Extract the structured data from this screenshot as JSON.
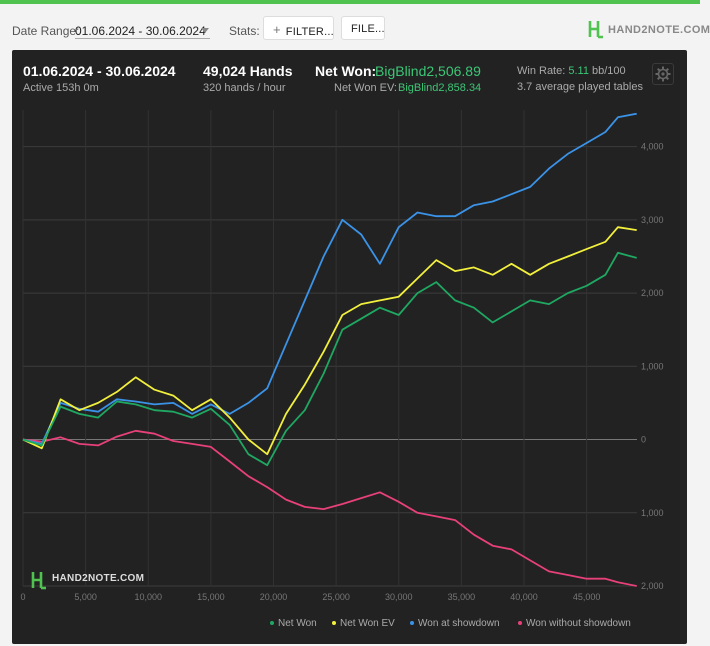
{
  "toolbar": {
    "date_range_label": "Date Range:",
    "date_range_value": "01.06.2024 - 30.06.2024",
    "stats_label": "Stats:",
    "filter_button": "FILTER...",
    "file_button": "FILE...",
    "logo_text": "HAND2NOTE.COM"
  },
  "summary": {
    "period": "01.06.2024 - 30.06.2024",
    "active": "Active 153h 0m",
    "hands": "49,024 Hands",
    "hands_rate": "320 hands / hour",
    "net_won_label": "Net Won:",
    "net_won_value": "BigBlind2,506.89",
    "net_won_ev_label": "Net Won  EV:",
    "net_won_ev_value": "BigBlind2,858.34",
    "win_rate_label": "Win Rate:",
    "win_rate_value": "5.11",
    "win_rate_unit": "bb/100",
    "avg_tables": "3.7 average played tables"
  },
  "watermark": "HAND2NOTE.COM",
  "colors": {
    "net_won": "#1fa862",
    "net_won_ev": "#f2f03c",
    "won_at_showdown": "#3b93e8",
    "won_without_showdown": "#e8407a",
    "accent_green": "#3cc676"
  },
  "chart_data": {
    "type": "line",
    "xlabel": "",
    "ylabel": "",
    "xlim": [
      0,
      49024
    ],
    "ylim": [
      -2000,
      4500
    ],
    "x_ticks": [
      0,
      5000,
      10000,
      15000,
      20000,
      25000,
      30000,
      35000,
      40000,
      45000
    ],
    "x_tick_labels": [
      "0",
      "5,000",
      "10,000",
      "15,000",
      "20,000",
      "25,000",
      "30,000",
      "35,000",
      "40,000",
      "45,000"
    ],
    "y_ticks": [
      4000,
      3000,
      2000,
      1000,
      0,
      -1000,
      -2000
    ],
    "y_tick_labels": [
      "4,000",
      "3,000",
      "2,000",
      "1,000",
      "0",
      "1,000",
      "2,000"
    ],
    "legend_position": "bottom-right",
    "series": [
      {
        "name": "Net Won",
        "x": [
          0,
          1500,
          3000,
          4500,
          6000,
          7500,
          9000,
          10500,
          12000,
          13500,
          15000,
          16500,
          18000,
          19500,
          21000,
          22500,
          24000,
          25500,
          27000,
          28500,
          30000,
          31500,
          33000,
          34500,
          36000,
          37500,
          39000,
          40500,
          42000,
          43500,
          45000,
          46500,
          47500,
          49000
        ],
        "y": [
          0,
          -80,
          450,
          350,
          300,
          520,
          480,
          400,
          380,
          300,
          420,
          200,
          -200,
          -350,
          120,
          400,
          900,
          1500,
          1650,
          1800,
          1700,
          2000,
          2150,
          1900,
          1800,
          1600,
          1750,
          1900,
          1850,
          2000,
          2100,
          2250,
          2550,
          2480
        ]
      },
      {
        "name": "Net Won  EV",
        "x": [
          0,
          1500,
          3000,
          4500,
          6000,
          7500,
          9000,
          10500,
          12000,
          13500,
          15000,
          16500,
          18000,
          19500,
          21000,
          22500,
          24000,
          25500,
          27000,
          28500,
          30000,
          31500,
          33000,
          34500,
          36000,
          37500,
          39000,
          40500,
          42000,
          43500,
          45000,
          46500,
          47500,
          49000
        ],
        "y": [
          0,
          -120,
          550,
          400,
          500,
          650,
          850,
          680,
          600,
          400,
          550,
          300,
          0,
          -200,
          350,
          750,
          1200,
          1700,
          1850,
          1900,
          1950,
          2200,
          2450,
          2300,
          2350,
          2250,
          2400,
          2250,
          2400,
          2500,
          2600,
          2700,
          2900,
          2860
        ]
      },
      {
        "name": "Won at showdown",
        "x": [
          0,
          1500,
          3000,
          4500,
          6000,
          7500,
          9000,
          10500,
          12000,
          13500,
          15000,
          16500,
          18000,
          19500,
          21000,
          22500,
          24000,
          25500,
          27000,
          28500,
          30000,
          31500,
          33000,
          34500,
          36000,
          37500,
          39000,
          40500,
          42000,
          43500,
          45000,
          46500,
          47500,
          49000
        ],
        "y": [
          0,
          -60,
          500,
          420,
          380,
          550,
          520,
          480,
          500,
          350,
          480,
          350,
          500,
          700,
          1300,
          1900,
          2500,
          3000,
          2800,
          2400,
          2900,
          3100,
          3050,
          3050,
          3200,
          3250,
          3350,
          3450,
          3700,
          3900,
          4050,
          4200,
          4400,
          4450
        ]
      },
      {
        "name": "Won without showdown",
        "x": [
          0,
          1500,
          3000,
          4500,
          6000,
          7500,
          9000,
          10500,
          12000,
          13500,
          15000,
          16500,
          18000,
          19500,
          21000,
          22500,
          24000,
          25500,
          27000,
          28500,
          30000,
          31500,
          33000,
          34500,
          36000,
          37500,
          39000,
          40500,
          42000,
          43500,
          45000,
          46500,
          47500,
          49000
        ],
        "y": [
          0,
          -30,
          30,
          -60,
          -80,
          40,
          120,
          80,
          -20,
          -60,
          -100,
          -300,
          -500,
          -650,
          -820,
          -920,
          -950,
          -880,
          -800,
          -720,
          -850,
          -1000,
          -1050,
          -1100,
          -1300,
          -1450,
          -1500,
          -1650,
          -1800,
          -1850,
          -1900,
          -1900,
          -1950,
          -2000
        ]
      }
    ]
  }
}
